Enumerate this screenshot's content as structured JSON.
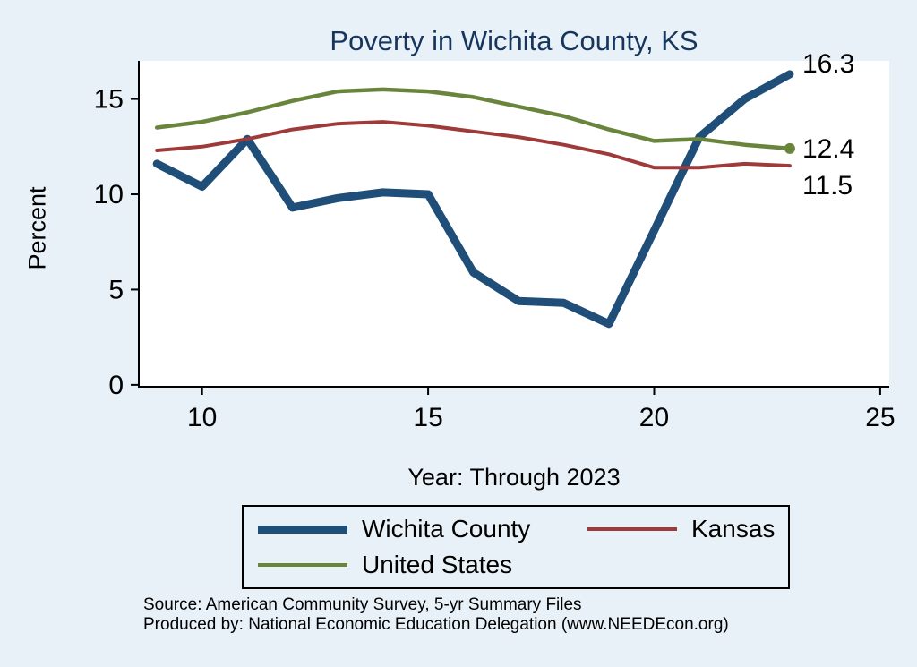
{
  "page": {
    "background_color": "#e8f1f7"
  },
  "chart_data": {
    "type": "line",
    "title": "Poverty in Wichita County, KS",
    "title_color": "#17365d",
    "xlabel": "Year: Through 2023",
    "ylabel": "Percent",
    "xlim": [
      8.6,
      25.2
    ],
    "ylim": [
      -0.1,
      17.0
    ],
    "x_ticks": [
      10,
      15,
      20,
      25
    ],
    "y_ticks": [
      0,
      5,
      10,
      15
    ],
    "grid": false,
    "plot_background": "#ffffff",
    "axis_color": "#000000",
    "x": [
      9,
      10,
      11,
      12,
      13,
      14,
      15,
      16,
      17,
      18,
      19,
      20,
      21,
      22,
      23
    ],
    "series": [
      {
        "name": "Wichita County",
        "color": "#1f4e79",
        "width": 9,
        "values": [
          11.6,
          10.4,
          12.9,
          9.3,
          9.8,
          10.1,
          10.0,
          5.9,
          4.4,
          4.3,
          3.2,
          8.1,
          13.0,
          15.0,
          16.3
        ]
      },
      {
        "name": "Kansas",
        "color": "#9e3a3a",
        "width": 4,
        "values": [
          12.3,
          12.5,
          12.9,
          13.4,
          13.7,
          13.8,
          13.6,
          13.3,
          13.0,
          12.6,
          12.1,
          11.4,
          11.4,
          11.6,
          11.5
        ]
      },
      {
        "name": "United States",
        "color": "#69853c",
        "width": 4.5,
        "end_marker": true,
        "values": [
          13.5,
          13.8,
          14.3,
          14.9,
          15.4,
          15.5,
          15.4,
          15.1,
          14.6,
          14.1,
          13.4,
          12.8,
          12.9,
          12.6,
          12.4
        ]
      }
    ],
    "end_labels": [
      {
        "text": "16.3",
        "series": 0,
        "dy": -12
      },
      {
        "text": "12.4",
        "series": 2,
        "dy": 0
      },
      {
        "text": "11.5",
        "series": 1,
        "dy": 22
      }
    ],
    "legend_position": "bottom"
  },
  "footer": {
    "source_line": "Source: American Community Survey, 5-yr Summary Files",
    "produced_line": "Produced by: National Economic Education Delegation (www.NEEDEcon.org)"
  }
}
